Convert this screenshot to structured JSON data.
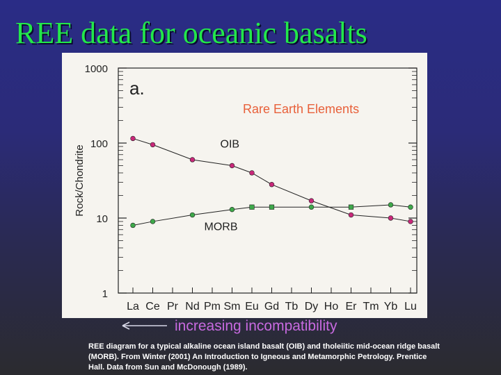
{
  "slide": {
    "title": "REE data for oceanic basalts",
    "arrow_caption": "increasing incompatibility",
    "source_note": "REE diagram for a typical alkaline ocean island basalt (OIB) and tholeiitic mid-ocean ridge basalt (MORB). From Winter (2001) An Introduction to Igneous and Metamorphic Petrology. Prentice Hall. Data from Sun and McDonough (1989)."
  },
  "colors": {
    "title": "#22e84a",
    "caption": "#c86ae0",
    "oib_marker": "#c8287a",
    "morb_marker": "#3ea84a",
    "annotation": "#e8603a"
  },
  "chart_data": {
    "type": "line",
    "panel_label": "a.",
    "annotation": "Rare Earth Elements",
    "ylabel": "Rock/Chondrite",
    "xlabel": "",
    "yscale": "log",
    "ylim": [
      1,
      1000
    ],
    "yticks": [
      "1",
      "10",
      "100",
      "1000"
    ],
    "grid": false,
    "categories": [
      "La",
      "Ce",
      "Pr",
      "Nd",
      "Pm",
      "Sm",
      "Eu",
      "Gd",
      "Tb",
      "Dy",
      "Ho",
      "Er",
      "Tm",
      "Yb",
      "Lu"
    ],
    "series": [
      {
        "name": "OIB",
        "points": [
          {
            "x": "La",
            "y": 115
          },
          {
            "x": "Ce",
            "y": 95
          },
          {
            "x": "Nd",
            "y": 60
          },
          {
            "x": "Sm",
            "y": 50
          },
          {
            "x": "Eu",
            "y": 40
          },
          {
            "x": "Gd",
            "y": 28
          },
          {
            "x": "Dy",
            "y": 17
          },
          {
            "x": "Er",
            "y": 11
          },
          {
            "x": "Yb",
            "y": 10
          },
          {
            "x": "Lu",
            "y": 9
          }
        ]
      },
      {
        "name": "MORB",
        "points": [
          {
            "x": "La",
            "y": 8
          },
          {
            "x": "Ce",
            "y": 9
          },
          {
            "x": "Nd",
            "y": 11
          },
          {
            "x": "Sm",
            "y": 13
          },
          {
            "x": "Eu",
            "y": 14
          },
          {
            "x": "Gd",
            "y": 14
          },
          {
            "x": "Dy",
            "y": 14
          },
          {
            "x": "Er",
            "y": 14
          },
          {
            "x": "Yb",
            "y": 15
          },
          {
            "x": "Lu",
            "y": 14
          }
        ]
      }
    ]
  }
}
